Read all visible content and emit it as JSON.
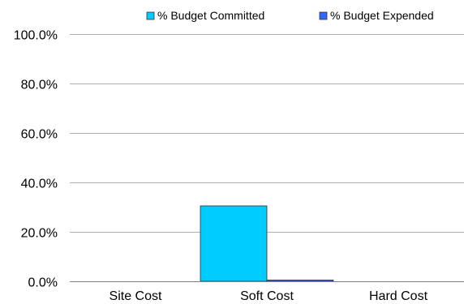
{
  "chart_data": {
    "type": "bar",
    "categories": [
      "Site Cost",
      "Soft Cost",
      "Hard Cost"
    ],
    "series": [
      {
        "name": "% Budget Committed",
        "values": [
          0,
          30.5,
          0
        ],
        "color": "#00CCFF"
      },
      {
        "name": "% Budget Expended",
        "values": [
          0,
          0.5,
          0
        ],
        "color": "#3366FF"
      }
    ],
    "ylim": [
      0,
      100
    ],
    "yticks": [
      0,
      20,
      40,
      60,
      80,
      100
    ],
    "yticks_labels": [
      "0.0%",
      "20.0%",
      "40.0%",
      "60.0%",
      "80.0%",
      "100.0%"
    ],
    "grid": true,
    "legend": "top",
    "title": "",
    "xlabel": "",
    "ylabel": ""
  }
}
